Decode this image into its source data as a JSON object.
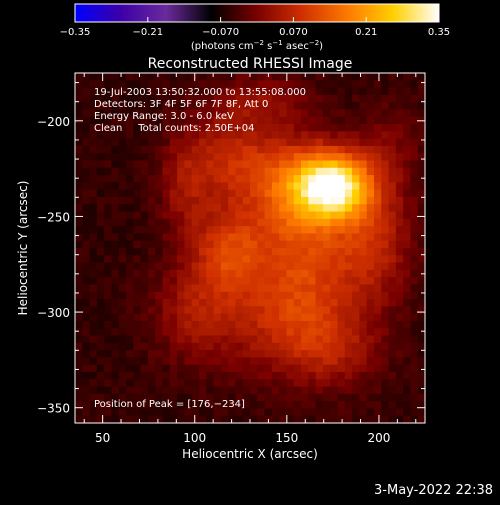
{
  "chart_data": {
    "type": "heatmap",
    "title": "Reconstructed RHESSI Image",
    "xlabel": "Heliocentric X (arcsec)",
    "ylabel": "Heliocentric Y (arcsec)",
    "xlim": [
      35,
      225
    ],
    "ylim": [
      -358,
      -175
    ],
    "x_ticks": [
      50,
      100,
      150,
      200
    ],
    "x_tick_labels": [
      "50",
      "100",
      "150",
      "200"
    ],
    "y_ticks": [
      -200,
      -250,
      -300,
      -350
    ],
    "y_tick_labels": [
      "−200",
      "−250",
      "−300",
      "−350"
    ],
    "colorbar": {
      "range": [
        -0.35,
        0.35
      ],
      "ticks": [
        -0.35,
        -0.21,
        -0.07,
        0.07,
        0.21,
        0.35
      ],
      "tick_labels": [
        "−0.35",
        "−0.21",
        "−0.070",
        "0.070",
        "0.21",
        "0.35"
      ],
      "units_text": "(photons cm",
      "units_sup1": "−2",
      "units_mid": " s",
      "units_sup2": "−1",
      "units_mid2": " asec",
      "units_sup3": "−2",
      "units_close": ")"
    },
    "annotations": [
      "19-Jul-2003 13:50:32.000 to 13:55:08.000",
      "Detectors: 3F 4F 5F 6F 7F 8F, Att 0",
      "Energy Range: 3.0 - 6.0 keV",
      "Clean     Total counts: 2.50E+04"
    ],
    "peak_label": "Position of Peak = [176,−234]",
    "peak": {
      "x": 176,
      "y": -234
    },
    "components": [
      {
        "x": 176,
        "y": -234,
        "amp": 0.33,
        "sx": 14,
        "sy": 12
      },
      {
        "x": 155,
        "y": -235,
        "amp": 0.16,
        "sx": 18,
        "sy": 18
      },
      {
        "x": 118,
        "y": -268,
        "amp": 0.13,
        "sx": 14,
        "sy": 16
      },
      {
        "x": 160,
        "y": -272,
        "amp": 0.12,
        "sx": 22,
        "sy": 22
      },
      {
        "x": 120,
        "y": -220,
        "amp": 0.11,
        "sx": 18,
        "sy": 16
      },
      {
        "x": 150,
        "y": -305,
        "amp": 0.1,
        "sx": 26,
        "sy": 20
      },
      {
        "x": 198,
        "y": -262,
        "amp": 0.1,
        "sx": 14,
        "sy": 22
      },
      {
        "x": 100,
        "y": -300,
        "amp": 0.08,
        "sx": 16,
        "sy": 18
      },
      {
        "x": 175,
        "y": -320,
        "amp": 0.07,
        "sx": 18,
        "sy": 14
      },
      {
        "x": 95,
        "y": -235,
        "amp": 0.07,
        "sx": 10,
        "sy": 18
      },
      {
        "x": 205,
        "y": -215,
        "amp": 0.05,
        "sx": 12,
        "sy": 16
      },
      {
        "x": 135,
        "y": -190,
        "amp": 0.06,
        "sx": 20,
        "sy": 10
      }
    ],
    "background_level": -0.05,
    "colormap": [
      "#0000ff",
      "#3c00a8",
      "#6a2a9c",
      "#000000",
      "#7a0000",
      "#d03000",
      "#ff7a00",
      "#ffd000",
      "#ffffff"
    ],
    "grid": false,
    "legend": "none"
  },
  "footer": {
    "date": "3-May-2022 22:38"
  }
}
